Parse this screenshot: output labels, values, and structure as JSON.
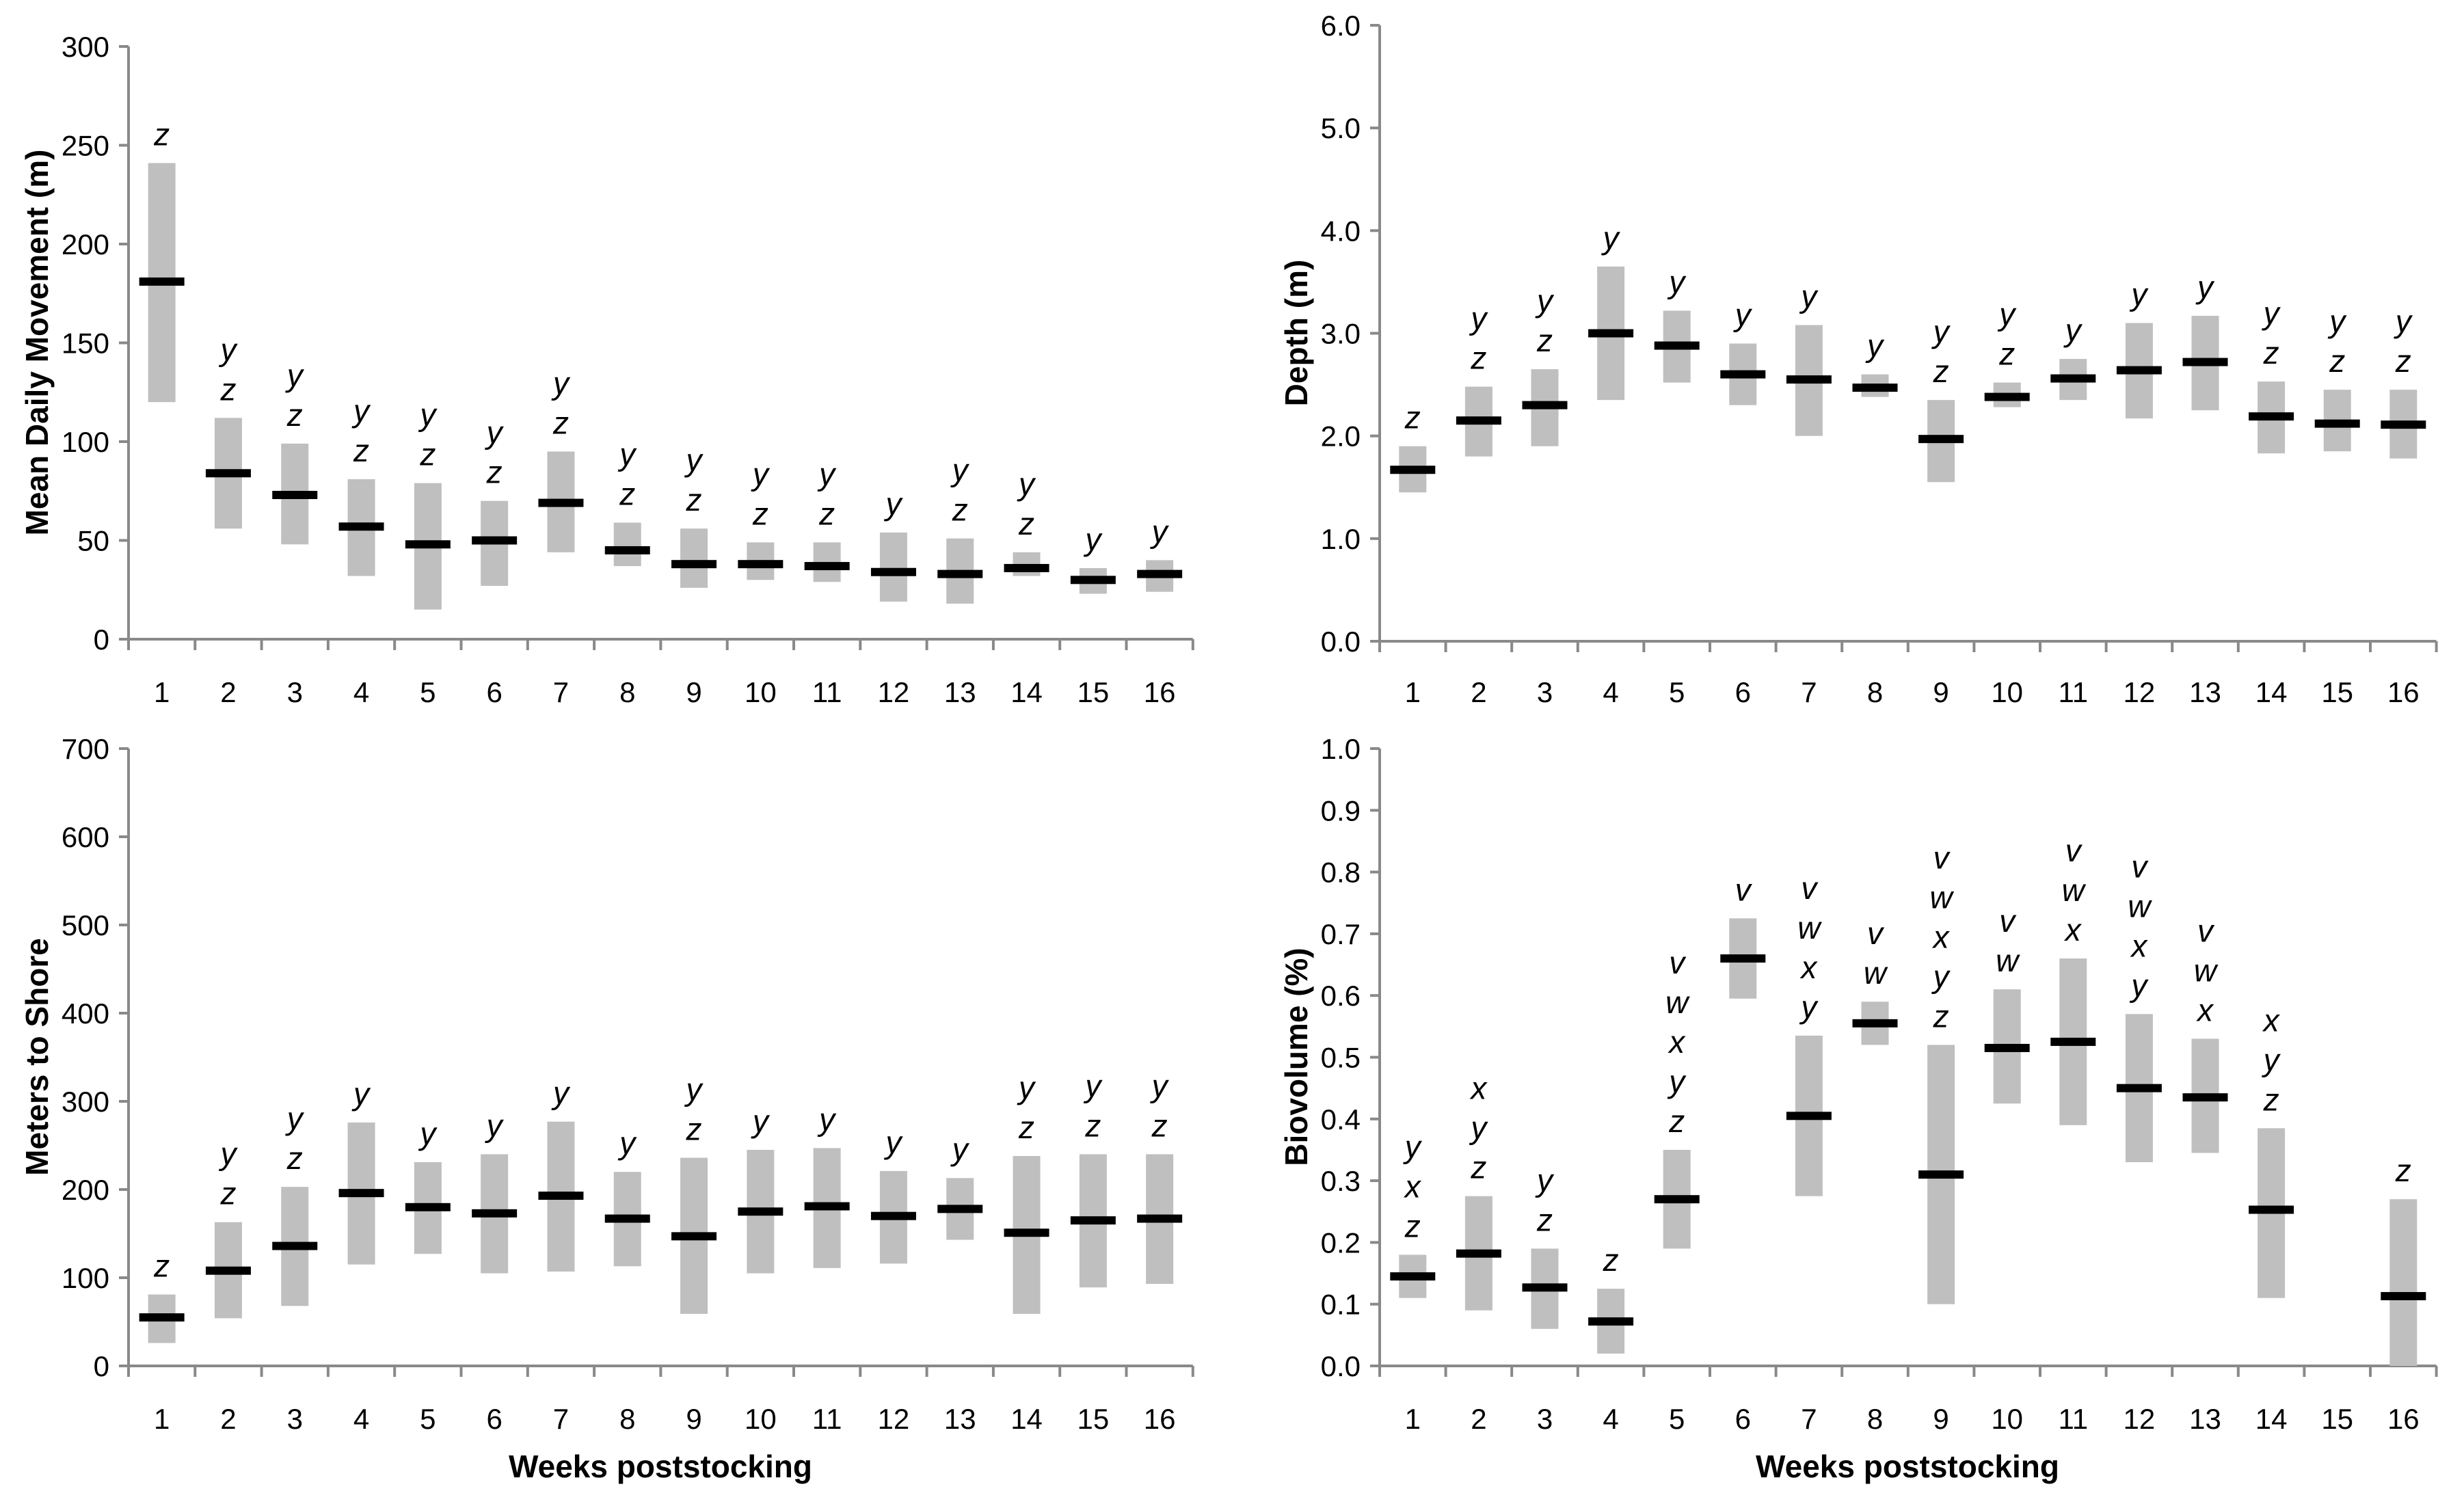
{
  "figure": {
    "x_axis_title": "Weeks poststocking",
    "colors": {
      "bar": "#bfbfbf",
      "mean": "#000000",
      "axis": "#898989",
      "text": "#000000"
    }
  },
  "chart_data": [
    {
      "type": "bar",
      "panel": "top-left",
      "ylabel": "Mean Daily Movement (m)",
      "xlabel": "",
      "ylim": [
        0,
        300
      ],
      "yticks": [
        "0",
        "50",
        "100",
        "150",
        "200",
        "250",
        "300"
      ],
      "grid": false,
      "categories": [
        "1",
        "2",
        "3",
        "4",
        "5",
        "6",
        "7",
        "8",
        "9",
        "10",
        "11",
        "12",
        "13",
        "14",
        "15",
        "16"
      ],
      "bars": [
        {
          "week": 1,
          "low": 120,
          "high": 241,
          "mean": 181,
          "letters": [
            "z"
          ]
        },
        {
          "week": 2,
          "low": 56,
          "high": 112,
          "mean": 84,
          "letters": [
            "y",
            "z"
          ]
        },
        {
          "week": 3,
          "low": 48,
          "high": 99,
          "mean": 73,
          "letters": [
            "y",
            "z"
          ]
        },
        {
          "week": 4,
          "low": 32,
          "high": 81,
          "mean": 57,
          "letters": [
            "y",
            "z"
          ]
        },
        {
          "week": 5,
          "low": 15,
          "high": 79,
          "mean": 48,
          "letters": [
            "y",
            "z"
          ]
        },
        {
          "week": 6,
          "low": 27,
          "high": 70,
          "mean": 50,
          "letters": [
            "y",
            "z"
          ]
        },
        {
          "week": 7,
          "low": 44,
          "high": 95,
          "mean": 69,
          "letters": [
            "y",
            "z"
          ]
        },
        {
          "week": 8,
          "low": 37,
          "high": 59,
          "mean": 45,
          "letters": [
            "y",
            "z"
          ]
        },
        {
          "week": 9,
          "low": 26,
          "high": 56,
          "mean": 38,
          "letters": [
            "y",
            "z"
          ]
        },
        {
          "week": 10,
          "low": 30,
          "high": 49,
          "mean": 38,
          "letters": [
            "y",
            "z"
          ]
        },
        {
          "week": 11,
          "low": 29,
          "high": 49,
          "mean": 37,
          "letters": [
            "y",
            "z"
          ]
        },
        {
          "week": 12,
          "low": 19,
          "high": 54,
          "mean": 34,
          "letters": [
            "y"
          ]
        },
        {
          "week": 13,
          "low": 18,
          "high": 51,
          "mean": 33,
          "letters": [
            "y",
            "z"
          ]
        },
        {
          "week": 14,
          "low": 32,
          "high": 44,
          "mean": 36,
          "letters": [
            "y",
            "z"
          ]
        },
        {
          "week": 15,
          "low": 23,
          "high": 36,
          "mean": 30,
          "letters": [
            "y"
          ]
        },
        {
          "week": 16,
          "low": 24,
          "high": 40,
          "mean": 33,
          "letters": [
            "y"
          ]
        }
      ]
    },
    {
      "type": "bar",
      "panel": "top-right",
      "ylabel": "Depth (m)",
      "xlabel": "",
      "ylim": [
        0,
        6
      ],
      "yticks": [
        "0.0",
        "1.0",
        "2.0",
        "3.0",
        "4.0",
        "5.0",
        "6.0"
      ],
      "grid": false,
      "categories": [
        "1",
        "2",
        "3",
        "4",
        "5",
        "6",
        "7",
        "8",
        "9",
        "10",
        "11",
        "12",
        "13",
        "14",
        "15",
        "16"
      ],
      "bars": [
        {
          "week": 1,
          "low": 1.45,
          "high": 1.9,
          "mean": 1.67,
          "letters": [
            "z"
          ]
        },
        {
          "week": 2,
          "low": 1.8,
          "high": 2.48,
          "mean": 2.15,
          "letters": [
            "y",
            "z"
          ]
        },
        {
          "week": 3,
          "low": 1.9,
          "high": 2.65,
          "mean": 2.3,
          "letters": [
            "y",
            "z"
          ]
        },
        {
          "week": 4,
          "low": 2.35,
          "high": 3.65,
          "mean": 3.0,
          "letters": [
            "y"
          ]
        },
        {
          "week": 5,
          "low": 2.52,
          "high": 3.22,
          "mean": 2.88,
          "letters": [
            "y"
          ]
        },
        {
          "week": 6,
          "low": 2.3,
          "high": 2.9,
          "mean": 2.6,
          "letters": [
            "y"
          ]
        },
        {
          "week": 7,
          "low": 2.0,
          "high": 3.08,
          "mean": 2.55,
          "letters": [
            "y"
          ]
        },
        {
          "week": 8,
          "low": 2.38,
          "high": 2.6,
          "mean": 2.47,
          "letters": [
            "y"
          ]
        },
        {
          "week": 9,
          "low": 1.55,
          "high": 2.35,
          "mean": 1.97,
          "letters": [
            "y",
            "z"
          ]
        },
        {
          "week": 10,
          "low": 2.28,
          "high": 2.52,
          "mean": 2.38,
          "letters": [
            "y",
            "z"
          ]
        },
        {
          "week": 11,
          "low": 2.35,
          "high": 2.75,
          "mean": 2.56,
          "letters": [
            "y"
          ]
        },
        {
          "week": 12,
          "low": 2.17,
          "high": 3.1,
          "mean": 2.64,
          "letters": [
            "y"
          ]
        },
        {
          "week": 13,
          "low": 2.25,
          "high": 3.17,
          "mean": 2.72,
          "letters": [
            "y"
          ]
        },
        {
          "week": 14,
          "low": 1.83,
          "high": 2.53,
          "mean": 2.19,
          "letters": [
            "y",
            "z"
          ]
        },
        {
          "week": 15,
          "low": 1.85,
          "high": 2.45,
          "mean": 2.12,
          "letters": [
            "y",
            "z"
          ]
        },
        {
          "week": 16,
          "low": 1.78,
          "high": 2.45,
          "mean": 2.11,
          "letters": [
            "y",
            "z"
          ]
        }
      ]
    },
    {
      "type": "bar",
      "panel": "bottom-left",
      "ylabel": "Meters to Shore",
      "xlabel": "Weeks poststocking",
      "ylim": [
        0,
        700
      ],
      "yticks": [
        "0",
        "100",
        "200",
        "300",
        "400",
        "500",
        "600",
        "700"
      ],
      "grid": false,
      "categories": [
        "1",
        "2",
        "3",
        "4",
        "5",
        "6",
        "7",
        "8",
        "9",
        "10",
        "11",
        "12",
        "13",
        "14",
        "15",
        "16"
      ],
      "bars": [
        {
          "week": 1,
          "low": 26,
          "high": 81,
          "mean": 55,
          "letters": [
            "z"
          ]
        },
        {
          "week": 2,
          "low": 54,
          "high": 163,
          "mean": 108,
          "letters": [
            "y",
            "z"
          ]
        },
        {
          "week": 3,
          "low": 68,
          "high": 203,
          "mean": 136,
          "letters": [
            "y",
            "z"
          ]
        },
        {
          "week": 4,
          "low": 115,
          "high": 276,
          "mean": 196,
          "letters": [
            "y"
          ]
        },
        {
          "week": 5,
          "low": 127,
          "high": 231,
          "mean": 180,
          "letters": [
            "y"
          ]
        },
        {
          "week": 6,
          "low": 105,
          "high": 240,
          "mean": 173,
          "letters": [
            "y"
          ]
        },
        {
          "week": 7,
          "low": 107,
          "high": 277,
          "mean": 193,
          "letters": [
            "y"
          ]
        },
        {
          "week": 8,
          "low": 113,
          "high": 220,
          "mean": 167,
          "letters": [
            "y"
          ]
        },
        {
          "week": 9,
          "low": 59,
          "high": 236,
          "mean": 147,
          "letters": [
            "y",
            "z"
          ]
        },
        {
          "week": 10,
          "low": 105,
          "high": 245,
          "mean": 175,
          "letters": [
            "y"
          ]
        },
        {
          "week": 11,
          "low": 111,
          "high": 247,
          "mean": 181,
          "letters": [
            "y"
          ]
        },
        {
          "week": 12,
          "low": 116,
          "high": 221,
          "mean": 170,
          "letters": [
            "y"
          ]
        },
        {
          "week": 13,
          "low": 143,
          "high": 213,
          "mean": 178,
          "letters": [
            "y"
          ]
        },
        {
          "week": 14,
          "low": 59,
          "high": 238,
          "mean": 151,
          "letters": [
            "y",
            "z"
          ]
        },
        {
          "week": 15,
          "low": 89,
          "high": 240,
          "mean": 165,
          "letters": [
            "y",
            "z"
          ]
        },
        {
          "week": 16,
          "low": 93,
          "high": 240,
          "mean": 167,
          "letters": [
            "y",
            "z"
          ]
        }
      ]
    },
    {
      "type": "bar",
      "panel": "bottom-right",
      "ylabel": "Biovolume (%)",
      "xlabel": "Weeks poststocking",
      "ylim": [
        0,
        1
      ],
      "yticks": [
        "0.0",
        "0.1",
        "0.2",
        "0.3",
        "0.4",
        "0.5",
        "0.6",
        "0.7",
        "0.8",
        "0.9",
        "1.0"
      ],
      "grid": false,
      "categories": [
        "1",
        "2",
        "3",
        "4",
        "5",
        "6",
        "7",
        "8",
        "9",
        "10",
        "11",
        "12",
        "13",
        "14",
        "15",
        "16"
      ],
      "bars": [
        {
          "week": 1,
          "low": 0.11,
          "high": 0.18,
          "mean": 0.145,
          "letters": [
            "y",
            "x",
            "z"
          ]
        },
        {
          "week": 2,
          "low": 0.09,
          "high": 0.275,
          "mean": 0.182,
          "letters": [
            "x",
            "y",
            "z"
          ]
        },
        {
          "week": 3,
          "low": 0.06,
          "high": 0.19,
          "mean": 0.127,
          "letters": [
            "y",
            "z"
          ]
        },
        {
          "week": 4,
          "low": 0.02,
          "high": 0.125,
          "mean": 0.072,
          "letters": [
            "z"
          ]
        },
        {
          "week": 5,
          "low": 0.19,
          "high": 0.35,
          "mean": 0.27,
          "letters": [
            "v",
            "w",
            "x",
            "y",
            "z"
          ]
        },
        {
          "week": 6,
          "low": 0.595,
          "high": 0.725,
          "mean": 0.66,
          "letters": [
            "v"
          ]
        },
        {
          "week": 7,
          "low": 0.275,
          "high": 0.535,
          "mean": 0.405,
          "letters": [
            "v",
            "w",
            "x",
            "y"
          ]
        },
        {
          "week": 8,
          "low": 0.52,
          "high": 0.59,
          "mean": 0.555,
          "letters": [
            "v",
            "w"
          ]
        },
        {
          "week": 9,
          "low": 0.1,
          "high": 0.52,
          "mean": 0.31,
          "letters": [
            "v",
            "w",
            "x",
            "y",
            "z"
          ]
        },
        {
          "week": 10,
          "low": 0.425,
          "high": 0.61,
          "mean": 0.515,
          "letters": [
            "v",
            "w"
          ]
        },
        {
          "week": 11,
          "low": 0.39,
          "high": 0.66,
          "mean": 0.525,
          "letters": [
            "v",
            "w",
            "x"
          ]
        },
        {
          "week": 12,
          "low": 0.33,
          "high": 0.57,
          "mean": 0.45,
          "letters": [
            "v",
            "w",
            "x",
            "y"
          ]
        },
        {
          "week": 13,
          "low": 0.345,
          "high": 0.53,
          "mean": 0.435,
          "letters": [
            "v",
            "w",
            "x"
          ]
        },
        {
          "week": 14,
          "low": 0.11,
          "high": 0.385,
          "mean": 0.253,
          "letters": [
            "x",
            "y",
            "z"
          ]
        },
        {
          "week": 15,
          "low": null,
          "high": null,
          "mean": null,
          "letters": []
        },
        {
          "week": 16,
          "low": 0.0,
          "high": 0.27,
          "mean": 0.113,
          "letters": [
            "z"
          ]
        }
      ]
    }
  ]
}
